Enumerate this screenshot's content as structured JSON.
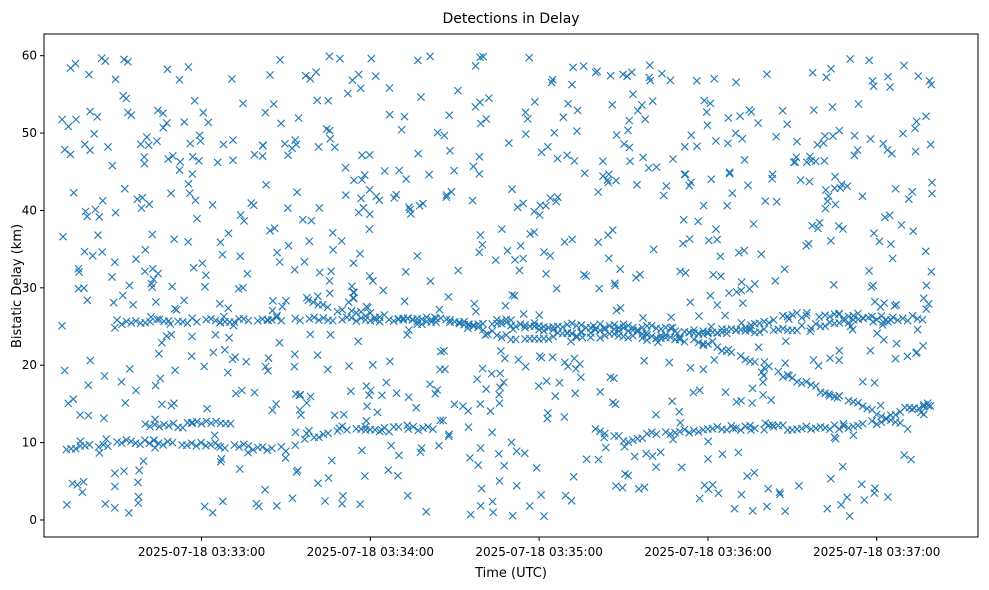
{
  "chart_data": {
    "type": "scatter",
    "title": "Detections in Delay",
    "xlabel": "Time (UTC)",
    "ylabel": "Bistatic Delay (km)",
    "x_ticks": [
      "2025-07-18 03:33:00",
      "2025-07-18 03:34:00",
      "2025-07-18 03:35:00",
      "2025-07-18 03:36:00",
      "2025-07-18 03:37:00"
    ],
    "y_ticks": [
      "0",
      "10",
      "20",
      "30",
      "40",
      "50",
      "60"
    ],
    "xlim": [
      "2025-07-18 03:32:04",
      "2025-07-18 03:37:36"
    ],
    "ylim": [
      -2.2,
      62.8
    ],
    "marker": "x",
    "color": "#1f77b4",
    "grid": false,
    "tracks": [
      {
        "x": [
          "2025-07-18 03:32:12",
          "2025-07-18 03:32:30",
          "2025-07-18 03:32:48",
          "2025-07-18 03:33:10",
          "2025-07-18 03:33:30",
          "2025-07-18 03:33:50",
          "2025-07-18 03:34:10",
          "2025-07-18 03:34:24"
        ],
        "y": [
          9.0,
          10.0,
          10.0,
          9.5,
          9.2,
          11.9,
          11.7,
          12.0
        ]
      },
      {
        "x": [
          "2025-07-18 03:32:40",
          "2025-07-18 03:32:50",
          "2025-07-18 03:33:00",
          "2025-07-18 03:33:12"
        ],
        "y": [
          12.2,
          12.2,
          12.4,
          12.5
        ]
      },
      {
        "x": [
          "2025-07-18 03:32:30",
          "2025-07-18 03:33:00",
          "2025-07-18 03:33:20",
          "2025-07-18 03:33:40",
          "2025-07-18 03:34:00",
          "2025-07-18 03:34:30",
          "2025-07-18 03:35:00",
          "2025-07-18 03:35:30",
          "2025-07-18 03:36:00",
          "2025-07-18 03:36:30",
          "2025-07-18 03:36:50",
          "2025-07-18 03:37:18"
        ],
        "y": [
          25.5,
          25.8,
          26.0,
          26.0,
          26.0,
          25.4,
          25.1,
          25.0,
          24.3,
          24.7,
          25.8,
          26.1
        ]
      },
      {
        "x": [
          "2025-07-18 03:33:38",
          "2025-07-18 03:33:50",
          "2025-07-18 03:34:05",
          "2025-07-18 03:34:30",
          "2025-07-18 03:34:50",
          "2025-07-18 03:35:10",
          "2025-07-18 03:35:30",
          "2025-07-18 03:35:45",
          "2025-07-18 03:36:00",
          "2025-07-18 03:36:20",
          "2025-07-18 03:36:40",
          "2025-07-18 03:37:00",
          "2025-07-18 03:37:10"
        ],
        "y": [
          28.3,
          27.0,
          26.2,
          25.7,
          23.4,
          23.8,
          24.7,
          23.4,
          23.0,
          19.8,
          16.8,
          13.9,
          12.0
        ]
      },
      {
        "x": [
          "2025-07-18 03:35:20",
          "2025-07-18 03:35:30",
          "2025-07-18 03:35:40",
          "2025-07-18 03:36:00",
          "2025-07-18 03:36:20",
          "2025-07-18 03:36:40",
          "2025-07-18 03:37:00",
          "2025-07-18 03:37:10",
          "2025-07-18 03:37:20"
        ],
        "y": [
          11.9,
          10.3,
          11.0,
          11.9,
          12.0,
          11.8,
          12.6,
          14.4,
          14.7
        ]
      },
      {
        "x": [
          "2025-07-18 03:34:45",
          "2025-07-18 03:35:10",
          "2025-07-18 03:35:40",
          "2025-07-18 03:36:10",
          "2025-07-18 03:36:30",
          "2025-07-18 03:36:50",
          "2025-07-18 03:37:10"
        ],
        "y": [
          26.0,
          24.0,
          23.5,
          24.5,
          26.4,
          26.4,
          26.0
        ]
      }
    ],
    "clutter": {
      "x_range": [
        "2025-07-18 03:32:10",
        "2025-07-18 03:37:20"
      ],
      "y_range": [
        0.5,
        60
      ]
    }
  }
}
